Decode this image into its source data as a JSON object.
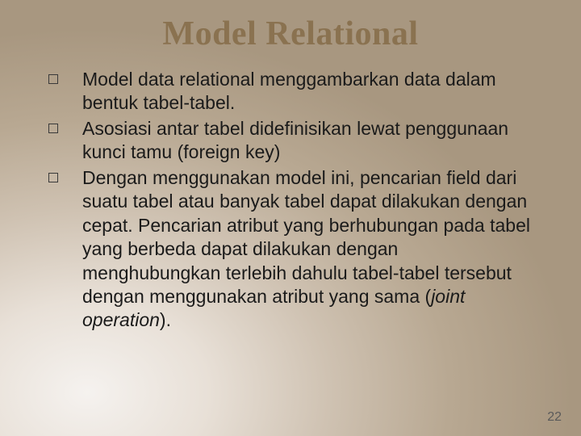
{
  "title": "Model Relational",
  "title_color": "#8a7250",
  "title_fontsize": 42,
  "body_fontsize": 23,
  "body_color": "#1a1a1a",
  "background_gradient": {
    "type": "radial",
    "stops": [
      "#f5f2ef",
      "#e8e0d7",
      "#cfc2b2",
      "#b8a892",
      "#a89780"
    ]
  },
  "bullets": [
    {
      "text": "Model data relational menggambarkan data dalam bentuk tabel-tabel."
    },
    {
      "text": "Asosiasi antar tabel didefinisikan lewat penggunaan kunci tamu (foreign key)"
    },
    {
      "text_before": "Dengan menggunakan model ini, pencarian field dari suatu tabel atau banyak tabel dapat dilakukan dengan cepat. Pencarian atribut yang berhubungan pada tabel yang berbeda dapat dilakukan dengan menghubungkan terlebih dahulu tabel-tabel tersebut dengan menggunakan atribut yang sama (",
      "text_italic": "joint operation",
      "text_after": ")."
    }
  ],
  "page_number": "22"
}
